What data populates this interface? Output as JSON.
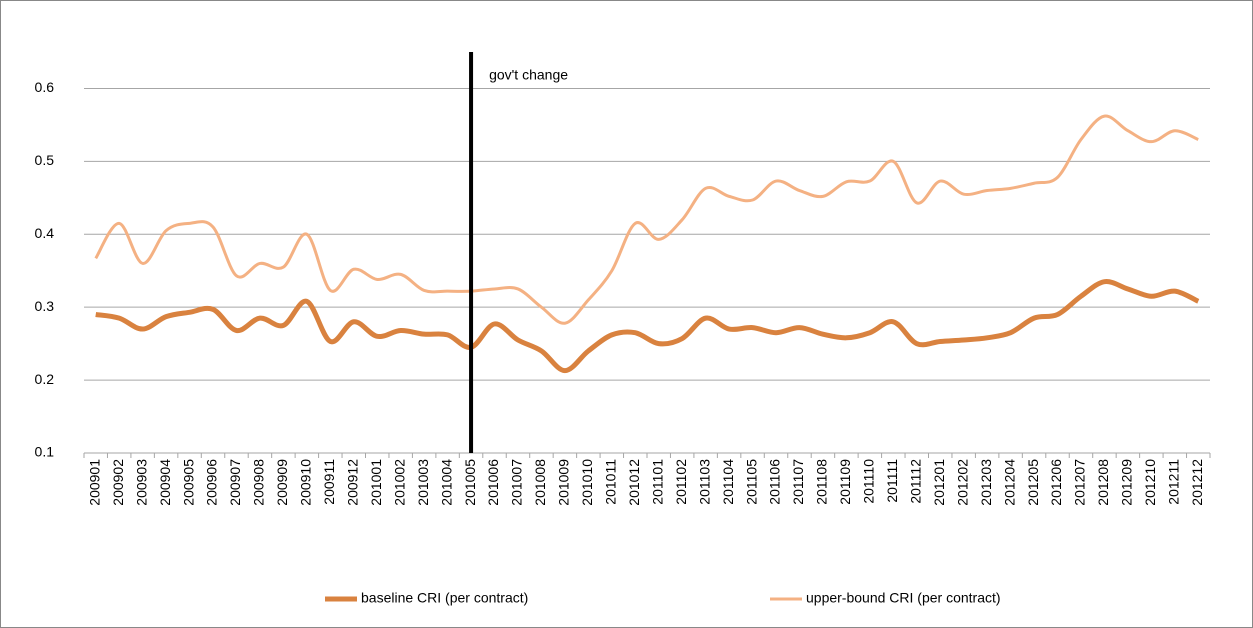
{
  "chart_data": {
    "type": "line",
    "categories": [
      "200901",
      "200902",
      "200903",
      "200904",
      "200905",
      "200906",
      "200907",
      "200908",
      "200909",
      "200910",
      "200911",
      "200912",
      "201001",
      "201002",
      "201003",
      "201004",
      "201005",
      "201006",
      "201007",
      "201008",
      "201009",
      "201010",
      "201011",
      "201012",
      "201101",
      "201102",
      "201103",
      "201104",
      "201105",
      "201106",
      "201107",
      "201108",
      "201109",
      "201110",
      "201111",
      "201112",
      "201201",
      "201202",
      "201203",
      "201204",
      "201205",
      "201206",
      "201207",
      "201208",
      "201209",
      "201210",
      "201211",
      "201212"
    ],
    "series": [
      {
        "name": "baseline CRI (per contract)",
        "color": "#d9823f",
        "width": 5,
        "values": [
          0.29,
          0.285,
          0.27,
          0.287,
          0.293,
          0.297,
          0.268,
          0.285,
          0.275,
          0.308,
          0.253,
          0.28,
          0.26,
          0.268,
          0.263,
          0.262,
          0.245,
          0.277,
          0.255,
          0.24,
          0.213,
          0.24,
          0.262,
          0.265,
          0.25,
          0.257,
          0.285,
          0.27,
          0.272,
          0.265,
          0.272,
          0.263,
          0.258,
          0.265,
          0.28,
          0.25,
          0.253,
          0.255,
          0.258,
          0.265,
          0.285,
          0.29,
          0.315,
          0.335,
          0.325,
          0.315,
          0.322,
          0.308
        ]
      },
      {
        "name": "upper-bound CRI (per contract)",
        "color": "#f4b183",
        "width": 3,
        "values": [
          0.367,
          0.415,
          0.36,
          0.405,
          0.415,
          0.41,
          0.343,
          0.36,
          0.355,
          0.4,
          0.323,
          0.352,
          0.338,
          0.345,
          0.323,
          0.322,
          0.322,
          0.325,
          0.325,
          0.3,
          0.278,
          0.31,
          0.35,
          0.415,
          0.393,
          0.42,
          0.463,
          0.452,
          0.447,
          0.473,
          0.46,
          0.452,
          0.472,
          0.473,
          0.5,
          0.443,
          0.473,
          0.455,
          0.46,
          0.463,
          0.47,
          0.478,
          0.53,
          0.562,
          0.542,
          0.527,
          0.542,
          0.53
        ]
      }
    ],
    "ylim": [
      0.1,
      0.65
    ],
    "yticks": [
      0.1,
      0.2,
      0.3,
      0.4,
      0.5,
      0.6
    ],
    "grid": true,
    "legend": "bottom",
    "annotations": [
      {
        "text": "gov't change",
        "x": "201005",
        "color": "#000000"
      }
    ]
  }
}
